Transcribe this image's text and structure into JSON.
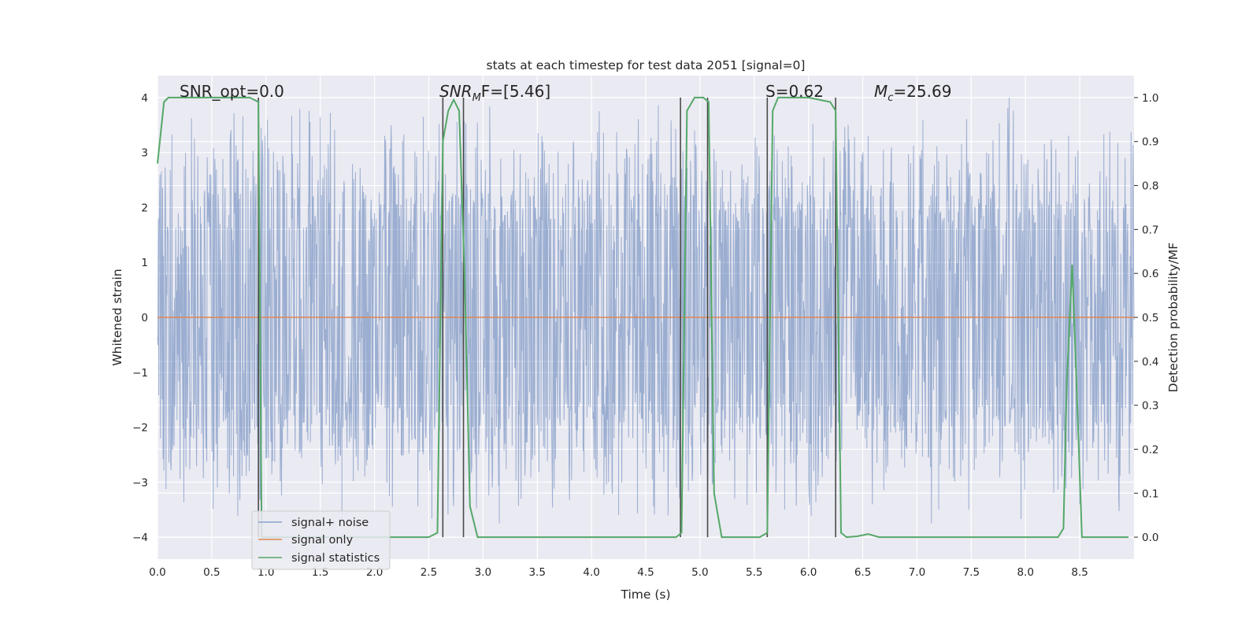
{
  "chart_data": {
    "type": "line",
    "title": "stats at each timestep for test data 2051 [signal=0]",
    "xlabel": "Time (s)",
    "ylabel": "Whitened strain",
    "ylabel_right": "Detection probability/MF",
    "xlim": [
      0.0,
      9.0
    ],
    "ylim": [
      -4.4,
      4.4
    ],
    "ylim_right": [
      -0.05,
      1.05
    ],
    "x_ticks": [
      "0.0",
      "0.5",
      "1.0",
      "1.5",
      "2.0",
      "2.5",
      "3.0",
      "3.5",
      "4.0",
      "4.5",
      "5.0",
      "5.5",
      "6.0",
      "6.5",
      "7.0",
      "7.5",
      "8.0",
      "8.5"
    ],
    "y_ticks": [
      "4",
      "3",
      "2",
      "1",
      "0",
      "−1",
      "−2",
      "−3",
      "−4"
    ],
    "y_ticks_right": [
      "1.0",
      "0.9",
      "0.8",
      "0.7",
      "0.6",
      "0.5",
      "0.4",
      "0.3",
      "0.2",
      "0.1",
      "0.0"
    ],
    "grid": true,
    "legend_position": "lower-left",
    "annotations": {
      "snr_opt": "SNR_opt=0.0",
      "snr_mf": "SNR",
      "snr_mf_sub": "M",
      "snr_mf_value": "F=[5.46]",
      "s": "S=0.62",
      "mc": "M",
      "mc_sub": "c",
      "mc_value": "=25.69"
    },
    "series": [
      {
        "name": "signal+ noise",
        "color": "#4c72b0",
        "description_kind": "noisy whitened strain",
        "band_core": [
          -1.55,
          1.6
        ],
        "spike_range": [
          -3.8,
          4.0
        ],
        "notable_spikes": [
          [
            1.7,
            -3.7
          ],
          [
            2.45,
            3.65
          ],
          [
            3.15,
            -3.75
          ],
          [
            4.25,
            -3.6
          ],
          [
            4.95,
            3.4
          ],
          [
            5.78,
            -3.5
          ],
          [
            6.55,
            3.3
          ],
          [
            7.2,
            -3.5
          ],
          [
            7.85,
            4.0
          ],
          [
            8.5,
            -3.4
          ]
        ]
      },
      {
        "name": "signal only",
        "color": "#dd8452",
        "x": [
          0.0,
          9.0
        ],
        "y": [
          0.0,
          0.0
        ]
      },
      {
        "name": "signal statistics",
        "color": "#55a868",
        "axis": "right",
        "x": [
          0.0,
          0.06,
          0.1,
          0.2,
          0.4,
          0.6,
          0.85,
          0.93,
          0.96,
          1.0,
          2.5,
          2.58,
          2.63,
          2.68,
          2.73,
          2.78,
          2.83,
          2.88,
          2.95,
          3.1,
          4.78,
          4.83,
          4.88,
          4.95,
          5.03,
          5.08,
          5.13,
          5.2,
          5.28,
          5.55,
          5.62,
          5.67,
          5.72,
          5.8,
          6.0,
          6.2,
          6.25,
          6.3,
          6.35,
          6.45,
          6.55,
          6.65,
          8.3,
          8.35,
          8.38,
          8.43,
          8.47,
          8.52,
          8.95
        ],
        "y": [
          0.85,
          0.99,
          1.0,
          1.0,
          1.0,
          1.0,
          1.0,
          0.99,
          0.0,
          0.0,
          0.0,
          0.01,
          0.9,
          0.97,
          0.995,
          0.97,
          0.6,
          0.07,
          0.0,
          0.0,
          0.0,
          0.01,
          0.97,
          1.0,
          1.0,
          0.99,
          0.1,
          0.0,
          0.0,
          0.0,
          0.01,
          0.97,
          1.0,
          1.0,
          1.0,
          0.99,
          0.97,
          0.01,
          0.0,
          0.002,
          0.007,
          0.0,
          0.0,
          0.02,
          0.35,
          0.62,
          0.35,
          0.0,
          0.0
        ]
      }
    ],
    "vertical_markers": [
      0.93,
      2.63,
      2.82,
      4.82,
      5.07,
      5.62,
      6.25
    ]
  }
}
